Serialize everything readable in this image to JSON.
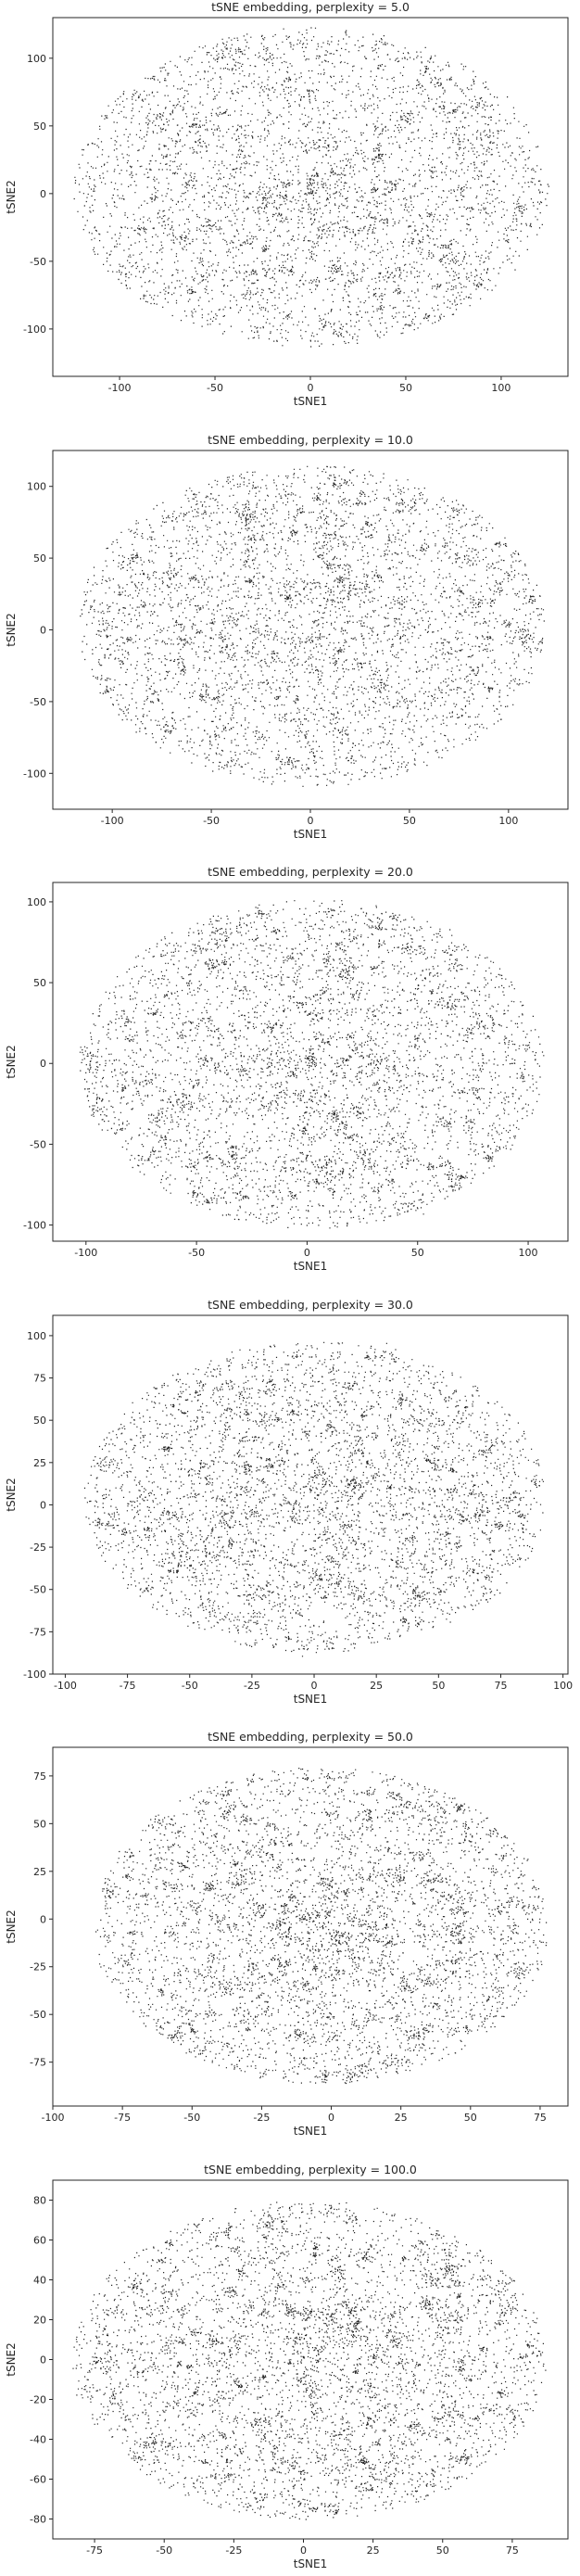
{
  "figure": {
    "background": "#ffffff",
    "point_color": "#262626"
  },
  "chart_data": [
    {
      "type": "scatter",
      "title": "tSNE embedding, perplexity = 5.0",
      "xlabel": "tSNE1",
      "ylabel": "tSNE2",
      "xlim": [
        -135,
        135
      ],
      "ylim": [
        -135,
        130
      ],
      "xticks": [
        -100,
        -50,
        0,
        50,
        100
      ],
      "yticks": [
        -100,
        -50,
        0,
        50,
        100
      ],
      "grid": false,
      "embedding": {
        "cx": 0,
        "cy": 5,
        "rx": 125,
        "ry": 118
      }
    },
    {
      "type": "scatter",
      "title": "tSNE embedding, perplexity = 10.0",
      "xlabel": "tSNE1",
      "ylabel": "tSNE2",
      "xlim": [
        -130,
        130
      ],
      "ylim": [
        -125,
        125
      ],
      "xticks": [
        -100,
        -50,
        0,
        50,
        100
      ],
      "yticks": [
        -100,
        -50,
        0,
        50,
        100
      ],
      "grid": false,
      "embedding": {
        "cx": 0,
        "cy": 3,
        "rx": 118,
        "ry": 112
      }
    },
    {
      "type": "scatter",
      "title": "tSNE embedding, perplexity = 20.0",
      "xlabel": "tSNE1",
      "ylabel": "tSNE2",
      "xlim": [
        -115,
        118
      ],
      "ylim": [
        -110,
        112
      ],
      "xticks": [
        -100,
        -50,
        0,
        50,
        100
      ],
      "yticks": [
        -100,
        -50,
        0,
        50,
        100
      ],
      "grid": false,
      "embedding": {
        "cx": 2,
        "cy": 0,
        "rx": 105,
        "ry": 102
      }
    },
    {
      "type": "scatter",
      "title": "tSNE embedding, perplexity = 30.0",
      "xlabel": "tSNE1",
      "ylabel": "tSNE2",
      "xlim": [
        -105,
        102
      ],
      "ylim": [
        -100,
        112
      ],
      "xticks": [
        -100,
        -75,
        -50,
        -25,
        0,
        25,
        50,
        75,
        100
      ],
      "yticks": [
        -100,
        -75,
        -50,
        -25,
        0,
        25,
        50,
        75,
        100
      ],
      "grid": false,
      "embedding": {
        "cx": 0,
        "cy": 5,
        "rx": 93,
        "ry": 92
      }
    },
    {
      "type": "scatter",
      "title": "tSNE embedding, perplexity = 50.0",
      "xlabel": "tSNE1",
      "ylabel": "tSNE2",
      "xlim": [
        -100,
        85
      ],
      "ylim": [
        -98,
        90
      ],
      "xticks": [
        -100,
        -75,
        -50,
        -25,
        0,
        25,
        50,
        75
      ],
      "yticks": [
        -75,
        -50,
        -25,
        0,
        25,
        50,
        75
      ],
      "grid": false,
      "embedding": {
        "cx": -4,
        "cy": -3,
        "rx": 82,
        "ry": 83
      }
    },
    {
      "type": "scatter",
      "title": "tSNE embedding, perplexity = 100.0",
      "xlabel": "tSNE1",
      "ylabel": "tSNE2",
      "xlim": [
        -90,
        95
      ],
      "ylim": [
        -90,
        90
      ],
      "xticks": [
        -75,
        -50,
        -25,
        0,
        25,
        50,
        75
      ],
      "yticks": [
        -80,
        -60,
        -40,
        -20,
        0,
        20,
        40,
        60,
        80
      ],
      "grid": false,
      "embedding": {
        "cx": 2,
        "cy": 0,
        "rx": 85,
        "ry": 80
      }
    }
  ]
}
